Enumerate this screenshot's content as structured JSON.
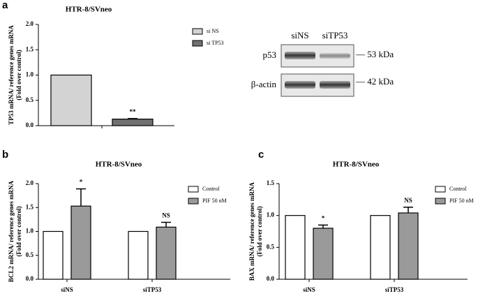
{
  "chart_data": [
    {
      "type": "bar",
      "panel_label": "a",
      "title": "HTR-8/SVneo",
      "y_label": [
        "TP53 mRNA/ reference genes mRNA",
        "(Fold over control)"
      ],
      "categories": [
        null
      ],
      "series": [
        {
          "name": "si NS",
          "color": "#d3d3d3",
          "values": [
            1.0
          ]
        },
        {
          "name": "si TP53",
          "color": "#707070",
          "values": [
            0.13
          ],
          "errors": [
            0.01
          ],
          "annotations": [
            "**"
          ]
        }
      ],
      "ylim": [
        0,
        2
      ],
      "yticks": [
        {
          "value": 0,
          "label": "0.0"
        },
        {
          "value": 0.5,
          "label": "0.5"
        },
        {
          "value": 1,
          "label": "1.0"
        },
        {
          "value": 1.5,
          "label": "1.5"
        },
        {
          "value": 2,
          "label": "2.0"
        }
      ]
    },
    {
      "type": "bar",
      "panel_label": "b",
      "title": "HTR-8/SVneo",
      "y_label": [
        "BCL2 mRNA/ reference genes mRNA",
        "(Fold over control)"
      ],
      "categories": [
        "siNS",
        "siTP53"
      ],
      "series": [
        {
          "name": "Control",
          "color": "#ffffff",
          "values": [
            1.0,
            1.0
          ]
        },
        {
          "name": "PIF 50 nM",
          "color": "#9a9a9a",
          "values": [
            1.53,
            1.09
          ],
          "errors": [
            0.36,
            0.1
          ],
          "annotations": [
            "*",
            "NS"
          ]
        }
      ],
      "ylim": [
        0,
        2
      ],
      "yticks": [
        {
          "value": 0,
          "label": "0.0"
        },
        {
          "value": 0.5,
          "label": "0.5"
        },
        {
          "value": 1,
          "label": "1.0"
        },
        {
          "value": 1.5,
          "label": "1.5"
        },
        {
          "value": 2,
          "label": "2.0"
        }
      ]
    },
    {
      "type": "bar",
      "panel_label": "c",
      "title": "HTR-8/SVneo",
      "y_label": [
        "BAX mRNA/ reference genes mRNA",
        "(Fold over control)"
      ],
      "categories": [
        "siNS",
        "siTP53"
      ],
      "series": [
        {
          "name": "Control",
          "color": "#ffffff",
          "values": [
            1.0,
            1.0
          ]
        },
        {
          "name": "PIF 50 nM",
          "color": "#9a9a9a",
          "values": [
            0.8,
            1.04
          ],
          "errors": [
            0.05,
            0.09
          ],
          "annotations": [
            "*",
            "NS"
          ]
        }
      ],
      "ylim": [
        0,
        1.5
      ],
      "yticks": [
        {
          "value": 0,
          "label": "0.0"
        },
        {
          "value": 0.5,
          "label": "0.5"
        },
        {
          "value": 1,
          "label": "1.0"
        },
        {
          "value": 1.5,
          "label": "1.5"
        }
      ]
    }
  ],
  "blot": {
    "lanes": [
      "siNS",
      "siTP53"
    ],
    "rows": [
      {
        "protein": "p53",
        "size": "— 53 kDa"
      },
      {
        "protein": "β-actin",
        "size": "— 42 kDa"
      }
    ]
  }
}
